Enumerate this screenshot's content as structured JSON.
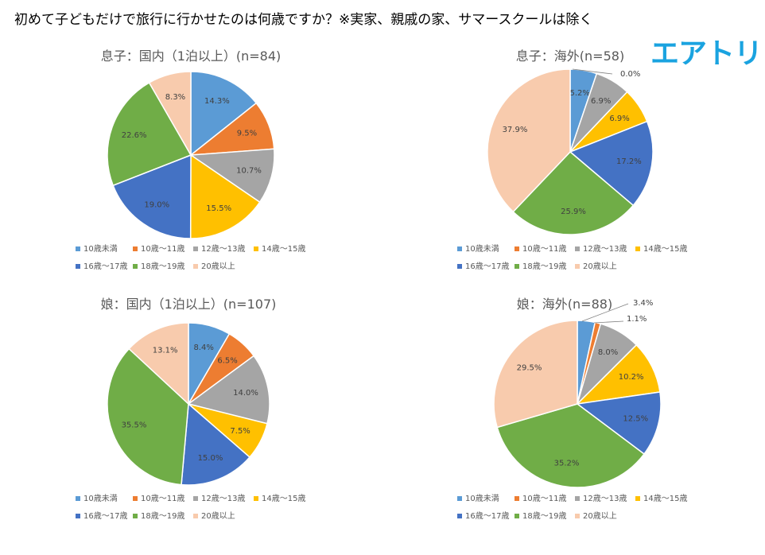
{
  "title": "初めて子どもだけで旅行に行かせたのは何歳ですか？※実家、親戚の家、サマースクールは除く",
  "logo": "エアトリ",
  "categories": [
    "10歳未満",
    "10歳～11歳",
    "12歳～13歳",
    "14歳～15歳",
    "16歳～17歳",
    "18歳～19歳",
    "20歳以上"
  ],
  "colors": [
    "#5b9bd5",
    "#ed7d31",
    "#a5a5a5",
    "#ffc000",
    "#4472c4",
    "#70ad47",
    "#f8cbad"
  ],
  "chart_data": [
    {
      "type": "pie",
      "title": "息子：国内（1泊以上）(n=84)",
      "categories": [
        "10歳未満",
        "10歳～11歳",
        "12歳～13歳",
        "14歳～15歳",
        "16歳～17歳",
        "18歳～19歳",
        "20歳以上"
      ],
      "values": [
        14.3,
        9.5,
        10.7,
        15.5,
        19.0,
        22.6,
        8.3
      ],
      "labels": [
        "14.3%",
        "9.5%",
        "10.7%",
        "15.5%",
        "19.0%",
        "22.6%",
        "8.3%"
      ],
      "legend": "bottom"
    },
    {
      "type": "pie",
      "title": "息子：海外(n=58)",
      "categories": [
        "10歳未満",
        "10歳～11歳",
        "12歳～13歳",
        "14歳～15歳",
        "16歳～17歳",
        "18歳～19歳",
        "20歳以上"
      ],
      "values": [
        5.2,
        0.0,
        6.9,
        6.9,
        17.2,
        25.9,
        37.9
      ],
      "labels": [
        "5.2%",
        "0.0%",
        "6.9%",
        "6.9%",
        "17.2%",
        "25.9%",
        "37.9%"
      ],
      "legend": "bottom"
    },
    {
      "type": "pie",
      "title": "娘：国内（1泊以上）(n=107)",
      "categories": [
        "10歳未満",
        "10歳～11歳",
        "12歳～13歳",
        "14歳～15歳",
        "16歳～17歳",
        "18歳～19歳",
        "20歳以上"
      ],
      "values": [
        8.4,
        6.5,
        14.0,
        7.5,
        15.0,
        35.5,
        13.1
      ],
      "labels": [
        "8.4%",
        "6.5%",
        "14.0%",
        "7.5%",
        "15.0%",
        "35.5%",
        "13.1%"
      ],
      "legend": "bottom"
    },
    {
      "type": "pie",
      "title": "娘：海外(n=88)",
      "categories": [
        "10歳未満",
        "10歳～11歳",
        "12歳～13歳",
        "14歳～15歳",
        "16歳～17歳",
        "18歳～19歳",
        "20歳以上"
      ],
      "values": [
        3.4,
        1.1,
        8.0,
        10.2,
        12.5,
        35.2,
        29.5
      ],
      "labels": [
        "3.4%",
        "1.1%",
        "8.0%",
        "10.2%",
        "12.5%",
        "35.2%",
        "29.5%"
      ],
      "legend": "bottom"
    }
  ]
}
